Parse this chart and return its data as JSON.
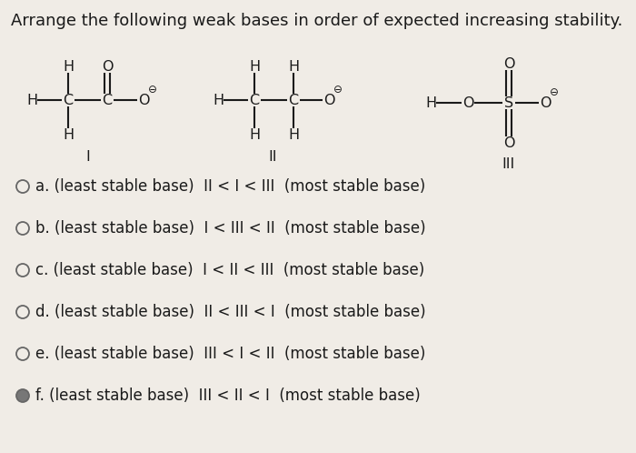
{
  "title": "Arrange the following weak bases in order of expected increasing stability.",
  "bg_color": "#f0ece6",
  "text_color": "#1a1a1a",
  "title_fontsize": 13.0,
  "options": [
    "a. (least stable base)  II < I < III  (most stable base)",
    "b. (least stable base)  I < III < II  (most stable base)",
    "c. (least stable base)  I < II < III  (most stable base)",
    "d. (least stable base)  II < III < I  (most stable base)",
    "e. (least stable base)  III < I < II  (most stable base)",
    "f. (least stable base)  III < II < I  (most stable base)"
  ],
  "circle_filled": [
    false,
    false,
    false,
    false,
    false,
    true
  ],
  "option_fontsize": 12.0,
  "struct_fontsize": 11.5
}
